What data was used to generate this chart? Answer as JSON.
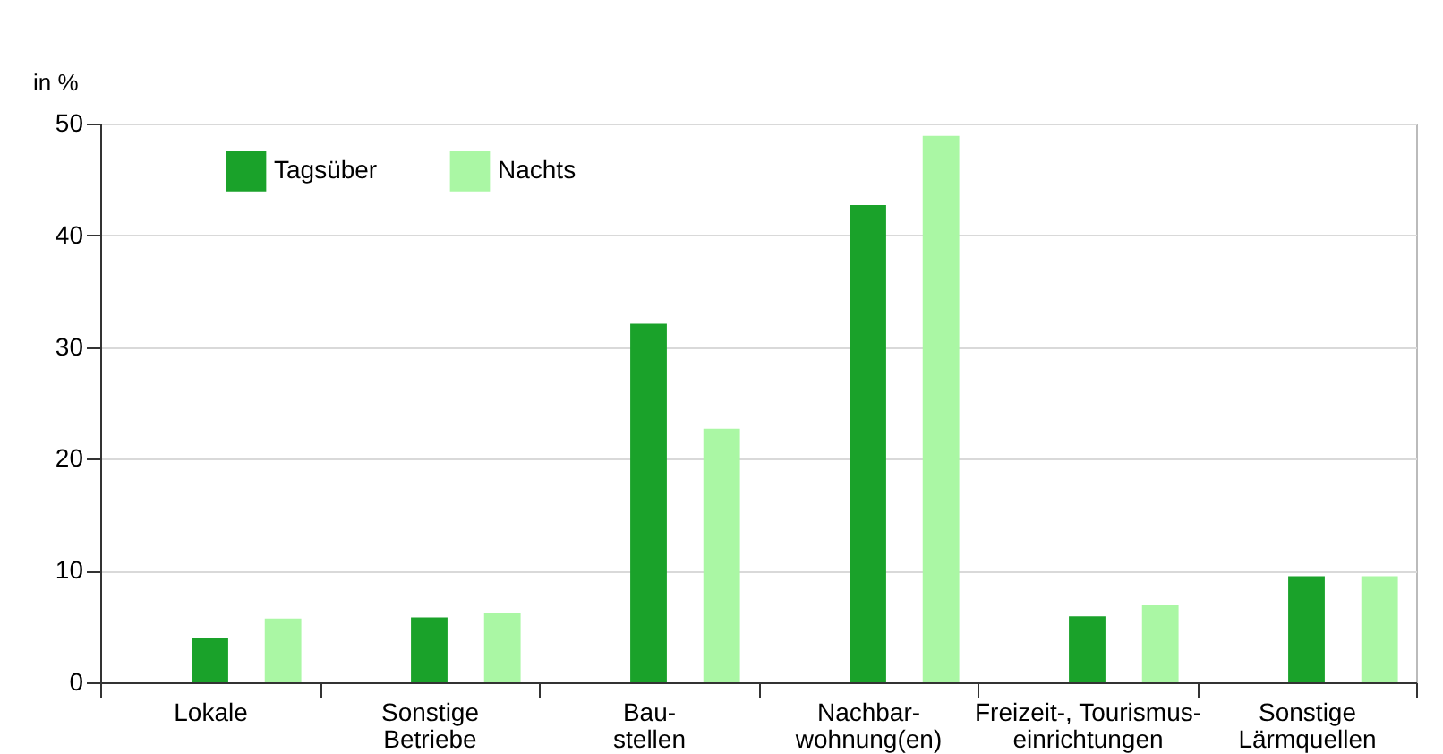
{
  "chart_data": {
    "type": "bar",
    "ylabel": "in %",
    "categories": [
      "Lokale",
      "Sonstige\nBetriebe",
      "Bau-\nstellen",
      "Nachbar-\nwohnung(en)",
      "Freizeit-, Tourismus-\neinrichtungen",
      "Sonstige\nLärmquellen"
    ],
    "series": [
      {
        "name": "Tagsüber",
        "color": "#1aa22a",
        "values": [
          4.0,
          5.8,
          32.1,
          42.7,
          5.9,
          9.5
        ]
      },
      {
        "name": "Nachts",
        "color": "#aaf7a4",
        "values": [
          5.7,
          6.2,
          22.7,
          48.9,
          6.9,
          9.5
        ]
      }
    ],
    "ylim": [
      0,
      50
    ],
    "yticks": [
      0,
      10,
      20,
      30,
      40,
      50
    ],
    "grid": "y",
    "legend": "top left"
  }
}
